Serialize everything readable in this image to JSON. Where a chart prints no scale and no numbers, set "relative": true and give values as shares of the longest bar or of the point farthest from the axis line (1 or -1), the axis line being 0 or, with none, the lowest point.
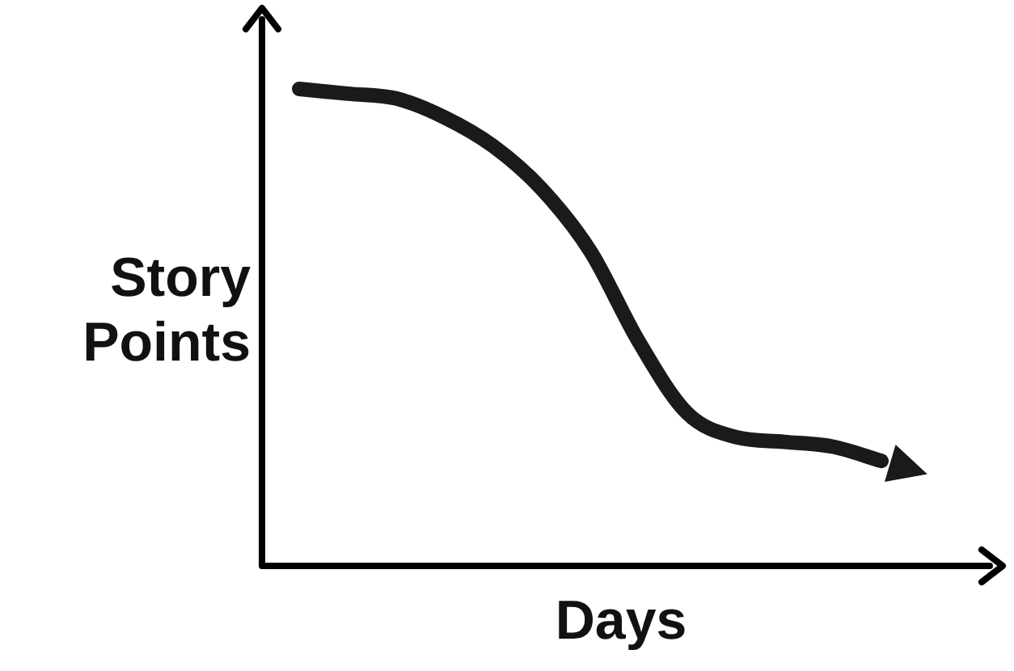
{
  "chart_data": {
    "type": "line",
    "xlabel": "Days",
    "ylabel": "Story Points",
    "relative": true,
    "legend": false,
    "marker": "none",
    "line_style": "solid",
    "categories": [
      null,
      null,
      null,
      null,
      null,
      null,
      null,
      null,
      null,
      null,
      null,
      null,
      null
    ],
    "series": [
      {
        "color": "#1a1a1a",
        "values": [
          1,
          0.99,
          0.98,
          0.94,
          0.88,
          0.79,
          0.66,
          0.47,
          0.32,
          0.27,
          0.26,
          0.25,
          0.22
        ]
      }
    ]
  }
}
